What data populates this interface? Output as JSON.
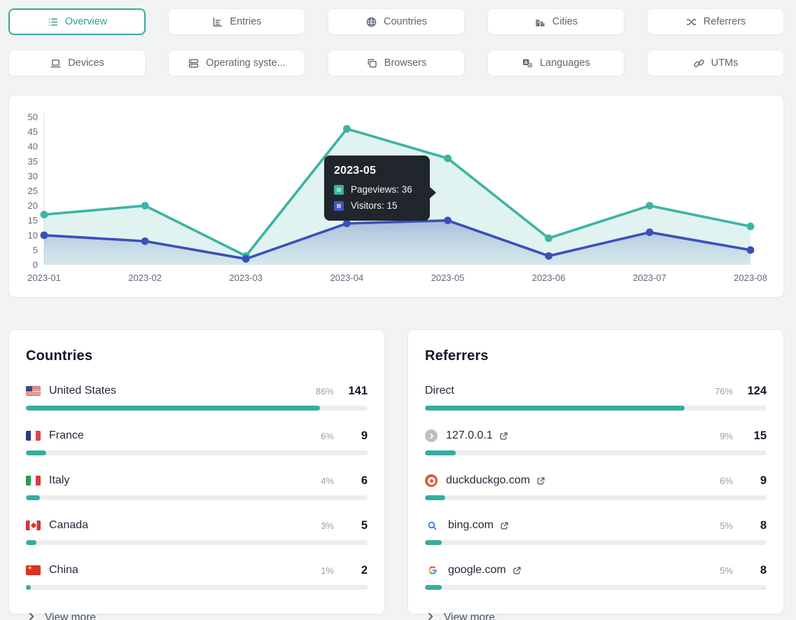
{
  "colors": {
    "accent_teal": "#35ab9c",
    "line_teal": "#3cb4a4",
    "line_indigo": "#3c4fba",
    "bar_fill": "#36ad9e",
    "bar_track": "#ededf0",
    "tooltip_bg": "#20262c",
    "page_bg": "#f2f4f3"
  },
  "tabs": [
    {
      "label": "Overview",
      "icon": "overview-list-icon",
      "active": true
    },
    {
      "label": "Entries",
      "icon": "entries-chart-icon",
      "active": false
    },
    {
      "label": "Countries",
      "icon": "globe-icon",
      "active": false
    },
    {
      "label": "Cities",
      "icon": "city-buildings-icon",
      "active": false
    },
    {
      "label": "Referrers",
      "icon": "shuffle-icon",
      "active": false
    },
    {
      "label": "Devices",
      "icon": "laptop-icon",
      "active": false
    },
    {
      "label": "Operating syste...",
      "icon": "server-stack-icon",
      "active": false
    },
    {
      "label": "Browsers",
      "icon": "browser-windows-icon",
      "active": false
    },
    {
      "label": "Languages",
      "icon": "translate-icon",
      "active": false
    },
    {
      "label": "UTMs",
      "icon": "link-icon",
      "active": false
    }
  ],
  "chart_data": {
    "type": "line",
    "x": [
      "2023-01",
      "2023-02",
      "2023-03",
      "2023-04",
      "2023-05",
      "2023-06",
      "2023-07",
      "2023-08"
    ],
    "series": [
      {
        "name": "Pageviews",
        "values": [
          17,
          20,
          3,
          46,
          36,
          9,
          20,
          13
        ],
        "color": "#3cb4a4"
      },
      {
        "name": "Visitors",
        "values": [
          10,
          8,
          2,
          14,
          15,
          3,
          11,
          5
        ],
        "color": "#3c4fba"
      }
    ],
    "ylim": [
      0,
      50
    ],
    "ytick_step": 5,
    "grid": "off",
    "legend": "tooltip-only",
    "tooltip": {
      "title": "2023-05",
      "rows": [
        {
          "text": "Pageviews: 36",
          "swatch_outer": "#3db1a2",
          "swatch_inner": "#93d6cb"
        },
        {
          "text": "Visitors: 15",
          "swatch_outer": "#4553c4",
          "swatch_inner": "#a9b2ea"
        }
      ]
    }
  },
  "countries": {
    "title": "Countries",
    "view_more": "View more",
    "rows": [
      {
        "flag": "us",
        "label": "United States",
        "pct": "86%",
        "value": "141",
        "bar": 86
      },
      {
        "flag": "fr",
        "label": "France",
        "pct": "6%",
        "value": "9",
        "bar": 6
      },
      {
        "flag": "it",
        "label": "Italy",
        "pct": "4%",
        "value": "6",
        "bar": 4
      },
      {
        "flag": "ca",
        "label": "Canada",
        "pct": "3%",
        "value": "5",
        "bar": 3
      },
      {
        "flag": "cn",
        "label": "China",
        "pct": "1%",
        "value": "2",
        "bar": 1
      }
    ]
  },
  "referrers": {
    "title": "Referrers",
    "view_more": "View more",
    "rows": [
      {
        "icon": "none",
        "label": "Direct",
        "external": false,
        "pct": "76%",
        "value": "124",
        "bar": 76
      },
      {
        "icon": "localhost",
        "label": "127.0.0.1",
        "external": true,
        "pct": "9%",
        "value": "15",
        "bar": 9
      },
      {
        "icon": "duckduckgo",
        "label": "duckduckgo.com",
        "external": true,
        "pct": "6%",
        "value": "9",
        "bar": 6
      },
      {
        "icon": "bing",
        "label": "bing.com",
        "external": true,
        "pct": "5%",
        "value": "8",
        "bar": 5
      },
      {
        "icon": "google",
        "label": "google.com",
        "external": true,
        "pct": "5%",
        "value": "8",
        "bar": 5
      }
    ]
  }
}
